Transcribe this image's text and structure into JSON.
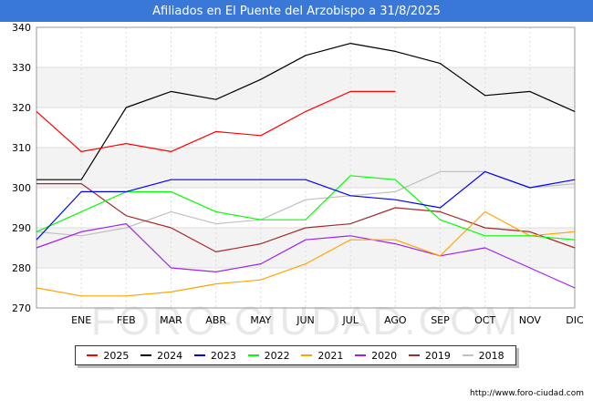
{
  "title": "Afiliados en El Puente del Arzobispo a 31/8/2025",
  "source": "http://www.foro-ciudad.com",
  "watermark": "FORO-CIUDAD.COM",
  "chart_data": {
    "type": "line",
    "categories": [
      "",
      "ENE",
      "FEB",
      "MAR",
      "ABR",
      "MAY",
      "JUN",
      "JUL",
      "AGO",
      "SEP",
      "OCT",
      "NOV",
      "DIC"
    ],
    "ylim": [
      270,
      340
    ],
    "yticks": [
      270,
      280,
      290,
      300,
      310,
      320,
      330,
      340
    ],
    "grid": true,
    "legend_position": "bottom",
    "series": [
      {
        "name": "2025",
        "color": "#ff0000",
        "values": [
          319,
          309,
          311,
          309,
          314,
          313,
          319,
          324,
          324,
          null,
          null,
          null,
          null
        ]
      },
      {
        "name": "2024",
        "color": "#000000",
        "values": [
          302,
          302,
          320,
          324,
          322,
          327,
          333,
          336,
          334,
          331,
          323,
          324,
          319
        ]
      },
      {
        "name": "2023",
        "color": "#0000ff",
        "values": [
          287,
          299,
          299,
          302,
          302,
          302,
          302,
          298,
          297,
          295,
          304,
          300,
          302
        ]
      },
      {
        "name": "2022",
        "color": "#00ff00",
        "values": [
          289,
          294,
          299,
          299,
          294,
          292,
          292,
          303,
          302,
          292,
          288,
          288,
          287
        ]
      },
      {
        "name": "2021",
        "color": "#ffa500",
        "values": [
          275,
          273,
          273,
          274,
          276,
          277,
          281,
          287,
          287,
          283,
          294,
          288,
          289
        ]
      },
      {
        "name": "2020",
        "color": "#a020f0",
        "values": [
          285,
          289,
          291,
          280,
          279,
          281,
          287,
          288,
          286,
          283,
          285,
          280,
          275
        ]
      },
      {
        "name": "2019",
        "color": "#a52a2a",
        "values": [
          301,
          301,
          293,
          290,
          284,
          286,
          290,
          291,
          295,
          294,
          290,
          289,
          285
        ]
      },
      {
        "name": "2018",
        "color": "#c0c0c0",
        "values": [
          289,
          288,
          290,
          294,
          291,
          292,
          297,
          298,
          299,
          304,
          304,
          300,
          301
        ]
      }
    ]
  }
}
